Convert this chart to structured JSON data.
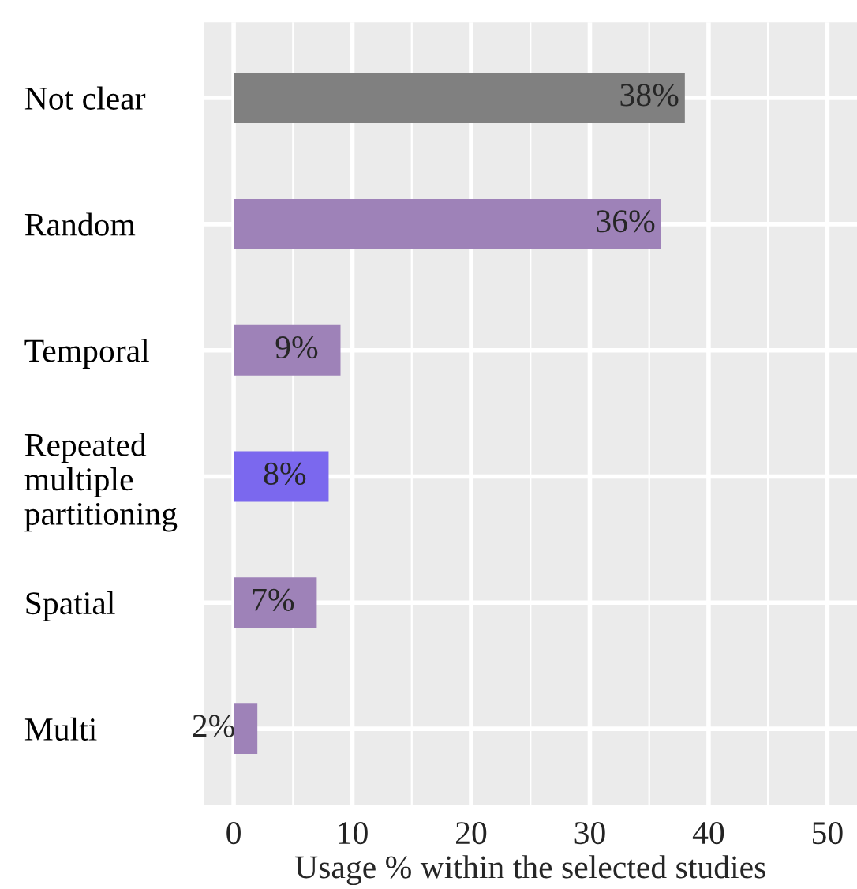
{
  "chart_data": {
    "type": "bar",
    "orientation": "horizontal",
    "xlabel": "Usage % within the selected studies",
    "categories": [
      "Not clear",
      "Random",
      "Temporal",
      "Repeated\nmultiple\npartitioning",
      "Spatial",
      "Multi"
    ],
    "values": [
      38,
      36,
      9,
      8,
      7,
      2
    ],
    "colors": [
      "#808080",
      "#9e82b8",
      "#9e82b8",
      "#7b68ee",
      "#9e82b8",
      "#9e82b8"
    ],
    "value_labels": [
      "38%",
      "36%",
      "9%",
      "8%",
      "7%",
      "2%"
    ],
    "xlim": [
      -2.5,
      52.5
    ],
    "xticks": [
      0,
      10,
      20,
      30,
      40,
      50
    ],
    "grid": true,
    "legend": false
  }
}
